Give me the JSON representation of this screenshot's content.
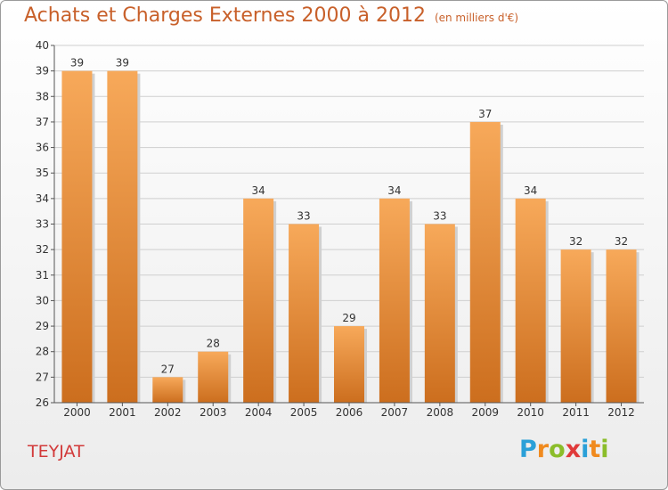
{
  "header": {
    "title": "Achats et Charges Externes 2000 à 2012",
    "subtitle": "(en milliers d'€)"
  },
  "footer": {
    "commune": "TEYJAT",
    "logo": {
      "text": "Proxiti",
      "letters": [
        "P",
        "r",
        "o",
        "x",
        "i",
        "t",
        "i"
      ],
      "letter_colors": [
        "#2aa0d8",
        "#f08a1e",
        "#8bbd2a",
        "#e03a3a",
        "#2aa0d8",
        "#f08a1e",
        "#8bbd2a"
      ]
    }
  },
  "colors": {
    "title": "#c8602a",
    "commune": "#d23a3a",
    "bar_light": "#f7a95a",
    "bar_dark": "#cc6e1e",
    "grid": "#cfcfcf",
    "axis": "#555555"
  },
  "chart_data": {
    "type": "bar",
    "title": "Achats et Charges Externes 2000 à 2012",
    "subtitle": "(en milliers d'€)",
    "categories": [
      "2000",
      "2001",
      "2002",
      "2003",
      "2004",
      "2005",
      "2006",
      "2007",
      "2008",
      "2009",
      "2010",
      "2011",
      "2012"
    ],
    "values": [
      39,
      39,
      27,
      28,
      34,
      33,
      29,
      34,
      33,
      37,
      34,
      32,
      32
    ],
    "ylim": [
      26,
      40
    ],
    "yticks": [
      "26",
      "27",
      "28",
      "29",
      "30",
      "31",
      "32",
      "33",
      "34",
      "35",
      "36",
      "37",
      "38",
      "39",
      "40"
    ],
    "grid": true,
    "legend": "none"
  }
}
